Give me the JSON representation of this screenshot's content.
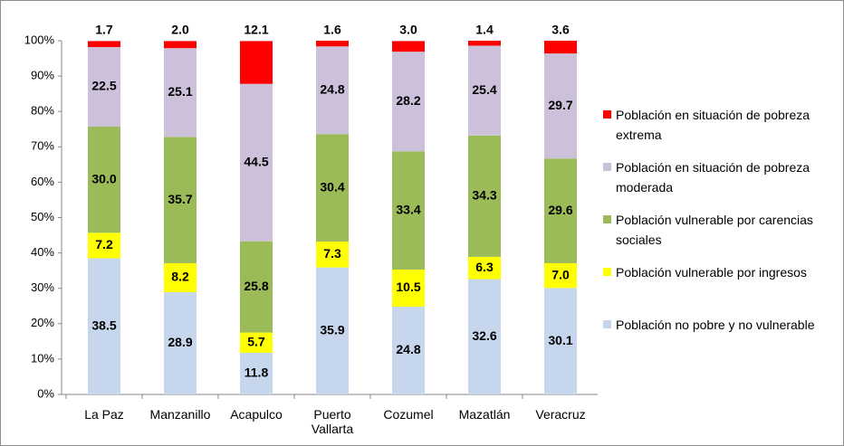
{
  "chart_data": {
    "type": "stacked_bar",
    "categories": [
      "La Paz",
      "Manzanillo",
      "Acapulco",
      "Puerto Vallarta",
      "Cozumel",
      "Mazatlán",
      "Veracruz"
    ],
    "series": [
      {
        "name": "Población no pobre y no vulnerable",
        "color": "#c6d6ec",
        "values": [
          38.5,
          28.9,
          11.8,
          35.9,
          24.8,
          32.6,
          30.1
        ],
        "value_labels": [
          "38.5",
          "28.9",
          "11.8",
          "35.9",
          "24.8",
          "32.6",
          "30.1"
        ]
      },
      {
        "name": "Población vulnerable por ingresos",
        "color": "#ffff00",
        "values": [
          7.2,
          8.2,
          5.7,
          7.3,
          10.5,
          6.3,
          7.0
        ],
        "value_labels": [
          "7.2",
          "8.2",
          "5.7",
          "7.3",
          "10.5",
          "6.3",
          "7.0"
        ]
      },
      {
        "name": "Población vulnerable por carencias sociales",
        "color": "#9bbb59",
        "values": [
          30.0,
          35.7,
          25.8,
          30.4,
          33.4,
          34.3,
          29.6
        ],
        "value_labels": [
          "30.0",
          "35.7",
          "25.8",
          "30.4",
          "33.4",
          "34.3",
          "29.6"
        ]
      },
      {
        "name": "Población en situación de pobreza moderada",
        "color": "#ccc0da",
        "values": [
          22.5,
          25.1,
          44.5,
          24.8,
          28.2,
          25.4,
          29.7
        ],
        "value_labels": [
          "22.5",
          "25.1",
          "44.5",
          "24.8",
          "28.2",
          "25.4",
          "29.7"
        ]
      },
      {
        "name": "Población en situación de pobreza extrema",
        "color": "#ff0000",
        "values": [
          1.7,
          2.0,
          12.1,
          1.6,
          3.0,
          1.4,
          3.6
        ],
        "value_labels": [
          "1.7",
          "2.0",
          "12.1",
          "1.6",
          "3.0",
          "1.4",
          "3.6"
        ]
      }
    ],
    "ylim": [
      0,
      100
    ],
    "yticks": [
      {
        "value": 0,
        "label": "0%"
      },
      {
        "value": 10,
        "label": "10%"
      },
      {
        "value": 20,
        "label": "20%"
      },
      {
        "value": 30,
        "label": "30%"
      },
      {
        "value": 40,
        "label": "40%"
      },
      {
        "value": 50,
        "label": "50%"
      },
      {
        "value": 60,
        "label": "60%"
      },
      {
        "value": 70,
        "label": "70%"
      },
      {
        "value": 80,
        "label": "80%"
      },
      {
        "value": 90,
        "label": "90%"
      },
      {
        "value": 100,
        "label": "100%"
      }
    ],
    "legend": "right"
  }
}
